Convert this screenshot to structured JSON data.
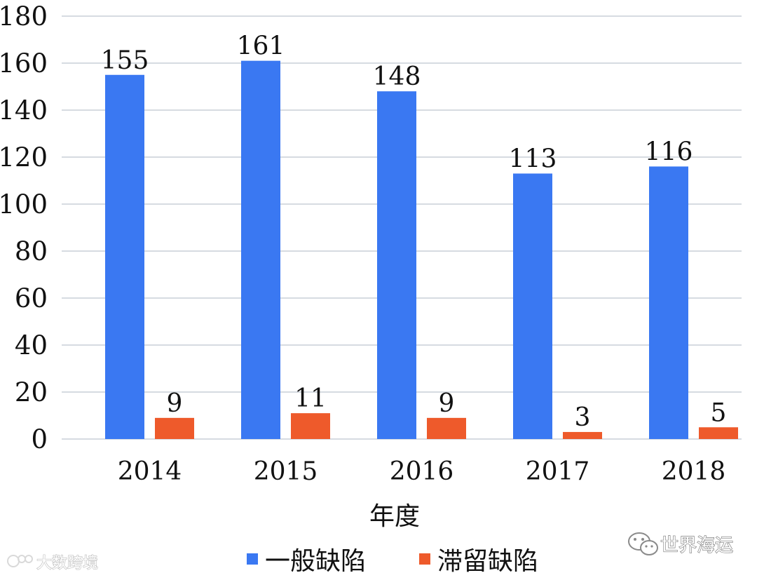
{
  "chart_data": {
    "type": "bar",
    "categories": [
      "2014",
      "2015",
      "2016",
      "2017",
      "2018"
    ],
    "series": [
      {
        "name": "一般缺陷",
        "values": [
          155,
          161,
          148,
          113,
          116
        ],
        "color": "#3a78f2"
      },
      {
        "name": "滞留缺陷",
        "values": [
          9,
          11,
          9,
          3,
          5
        ],
        "color": "#ee5a2b"
      }
    ],
    "xlabel": "年度",
    "ylabel": "",
    "ylim": [
      0,
      180
    ],
    "yticks": [
      0,
      20,
      40,
      60,
      80,
      100,
      120,
      140,
      160,
      180
    ],
    "grid": true,
    "legend_position": "bottom",
    "show_data_labels": true
  },
  "watermarks": {
    "bottom_left": "大数跨境",
    "bottom_right": "世界海运"
  },
  "colors": {
    "grid": "#d6dbe1",
    "text": "#111111"
  }
}
